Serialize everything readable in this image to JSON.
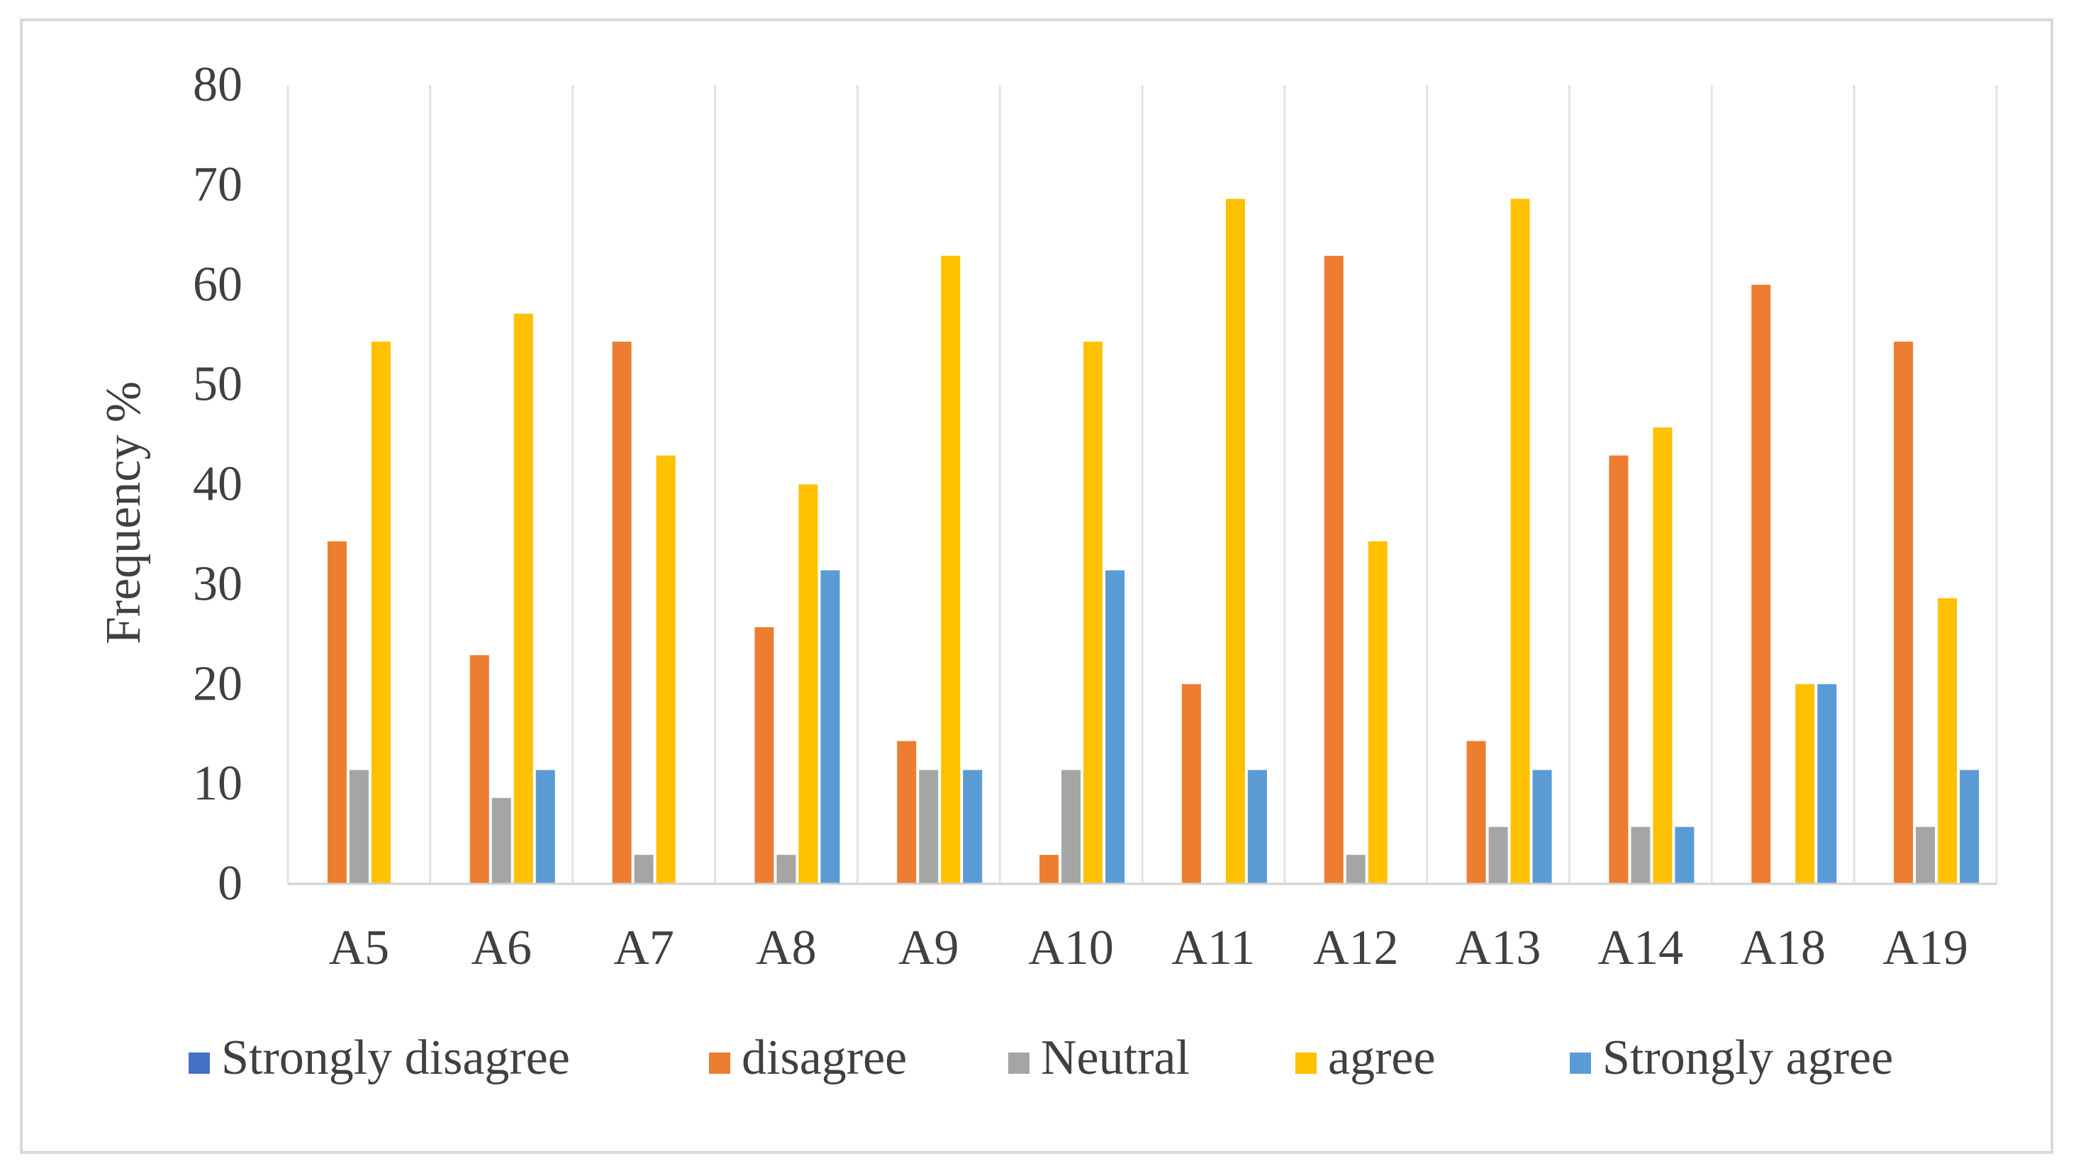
{
  "chart_data": {
    "type": "bar",
    "title": "",
    "xlabel": "",
    "ylabel": "Frequency %",
    "ylim": [
      0,
      80
    ],
    "yticks": [
      0,
      10,
      20,
      30,
      40,
      50,
      60,
      70,
      80
    ],
    "grid": "vertical category separators",
    "legend_position": "bottom",
    "categories": [
      "A5",
      "A6",
      "A7",
      "A8",
      "A9",
      "A10",
      "A11",
      "A12",
      "A13",
      "A14",
      "A18",
      "A19"
    ],
    "series": [
      {
        "name": "Strongly disagree",
        "color": "#4472c4",
        "values": [
          0,
          0,
          0,
          0,
          0,
          0,
          0,
          0,
          0,
          0,
          0,
          0
        ]
      },
      {
        "name": "disagree",
        "color": "#ed7d31",
        "values": [
          34.3,
          22.9,
          54.3,
          25.7,
          14.3,
          2.9,
          20,
          62.9,
          14.3,
          42.9,
          60,
          54.3
        ]
      },
      {
        "name": "Neutral",
        "color": "#a5a5a5",
        "values": [
          11.4,
          8.6,
          2.9,
          2.9,
          11.4,
          11.4,
          0,
          2.9,
          5.7,
          5.7,
          0,
          5.7
        ]
      },
      {
        "name": "agree",
        "color": "#ffc000",
        "values": [
          54.3,
          57.1,
          42.9,
          40,
          62.9,
          54.3,
          68.6,
          34.3,
          68.6,
          45.7,
          20,
          28.6
        ]
      },
      {
        "name": "Strongly agree",
        "color": "#5b9bd5",
        "values": [
          0,
          11.4,
          0,
          31.4,
          11.4,
          31.4,
          11.4,
          0,
          11.4,
          5.7,
          20,
          11.4
        ]
      }
    ]
  }
}
